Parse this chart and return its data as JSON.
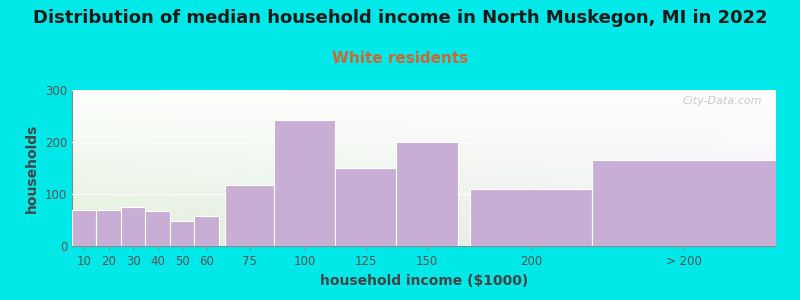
{
  "title": "Distribution of median household income in North Muskegon, MI in 2022",
  "subtitle": "White residents",
  "xlabel": "household income ($1000)",
  "ylabel": "households",
  "background_outer": "#00e8e8",
  "background_inner_left": "#dff0d8",
  "background_inner_right": "#f0ecf5",
  "background_inner_top": "#f5f2f8",
  "bar_color": "#c8aed4",
  "categories": [
    "10",
    "20",
    "30",
    "40",
    "50",
    "60",
    "75",
    "100",
    "125",
    "150",
    "200",
    "> 200"
  ],
  "values": [
    70,
    70,
    75,
    68,
    48,
    58,
    118,
    242,
    150,
    200,
    110,
    165
  ],
  "ylim": [
    0,
    300
  ],
  "yticks": [
    0,
    100,
    200,
    300
  ],
  "title_fontsize": 13,
  "subtitle_fontsize": 11,
  "subtitle_color": "#cc6633",
  "axis_label_fontsize": 10,
  "tick_fontsize": 8.5,
  "tick_color": "#555555",
  "watermark_text": "City-Data.com",
  "bar_lefts": [
    0,
    10,
    20,
    30,
    40,
    50,
    62.5,
    82.5,
    107.5,
    132.5,
    162.5,
    212.5
  ],
  "bar_widths": [
    10,
    10,
    10,
    10,
    10,
    10,
    20,
    25,
    25,
    25,
    50,
    75
  ],
  "xlim": [
    0,
    287.5
  ]
}
